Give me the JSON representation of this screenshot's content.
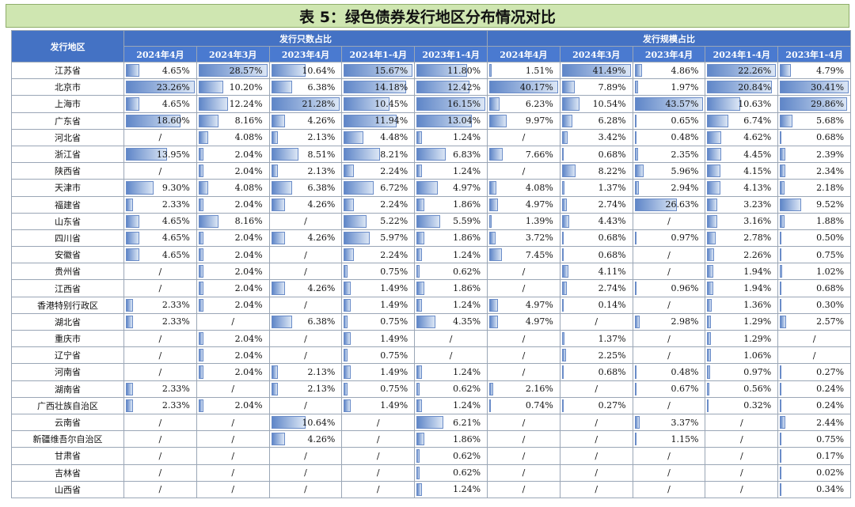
{
  "title": "表 5：绿色债券发行地区分布情况对比",
  "header": {
    "region": "发行地区",
    "groups": [
      "发行只数占比",
      "发行规模占比"
    ],
    "periods": [
      "2024年4月",
      "2024年3月",
      "2023年4月",
      "2024年1-4月",
      "2023年1-4月"
    ]
  },
  "colors": {
    "title_bg": "#cfe6b1",
    "header_bg": "#4472c4",
    "bar_dark": "#5f86c8",
    "bar_light": "#dbe6f5"
  },
  "rows": [
    {
      "region": "江苏省",
      "values": [
        "4.65%",
        "28.57%",
        "10.64%",
        "15.67%",
        "11.80%",
        "1.51%",
        "41.49%",
        "4.86%",
        "22.26%",
        "4.79%"
      ]
    },
    {
      "region": "北京市",
      "values": [
        "23.26%",
        "10.20%",
        "6.38%",
        "14.18%",
        "12.42%",
        "40.17%",
        "7.89%",
        "1.97%",
        "20.84%",
        "30.41%"
      ]
    },
    {
      "region": "上海市",
      "values": [
        "4.65%",
        "12.24%",
        "21.28%",
        "10.45%",
        "16.15%",
        "6.23%",
        "10.54%",
        "43.57%",
        "10.63%",
        "29.86%"
      ]
    },
    {
      "region": "广东省",
      "values": [
        "18.60%",
        "8.16%",
        "4.26%",
        "11.94%",
        "13.04%",
        "9.97%",
        "6.28%",
        "0.65%",
        "6.74%",
        "5.68%"
      ]
    },
    {
      "region": "河北省",
      "values": [
        "/",
        "4.08%",
        "2.13%",
        "4.48%",
        "1.24%",
        "/",
        "3.42%",
        "0.48%",
        "4.62%",
        "0.68%"
      ]
    },
    {
      "region": "浙江省",
      "values": [
        "13.95%",
        "2.04%",
        "8.51%",
        "8.21%",
        "6.83%",
        "7.66%",
        "0.68%",
        "2.35%",
        "4.45%",
        "2.39%"
      ]
    },
    {
      "region": "陕西省",
      "values": [
        "/",
        "2.04%",
        "2.13%",
        "2.24%",
        "1.24%",
        "/",
        "8.22%",
        "5.96%",
        "4.15%",
        "2.34%"
      ]
    },
    {
      "region": "天津市",
      "values": [
        "9.30%",
        "4.08%",
        "6.38%",
        "6.72%",
        "4.97%",
        "4.08%",
        "1.37%",
        "2.94%",
        "4.13%",
        "2.18%"
      ]
    },
    {
      "region": "福建省",
      "values": [
        "2.33%",
        "2.04%",
        "4.26%",
        "2.24%",
        "1.86%",
        "4.97%",
        "2.74%",
        "26.63%",
        "3.23%",
        "9.52%"
      ]
    },
    {
      "region": "山东省",
      "values": [
        "4.65%",
        "8.16%",
        "/",
        "5.22%",
        "5.59%",
        "1.39%",
        "4.43%",
        "/",
        "3.16%",
        "1.88%"
      ]
    },
    {
      "region": "四川省",
      "values": [
        "4.65%",
        "2.04%",
        "4.26%",
        "5.97%",
        "1.86%",
        "3.72%",
        "0.68%",
        "0.97%",
        "2.78%",
        "0.50%"
      ]
    },
    {
      "region": "安徽省",
      "values": [
        "4.65%",
        "2.04%",
        "/",
        "2.24%",
        "1.24%",
        "7.45%",
        "0.68%",
        "/",
        "2.26%",
        "0.75%"
      ]
    },
    {
      "region": "贵州省",
      "values": [
        "/",
        "2.04%",
        "/",
        "0.75%",
        "0.62%",
        "/",
        "4.11%",
        "/",
        "1.94%",
        "1.02%"
      ]
    },
    {
      "region": "江西省",
      "values": [
        "/",
        "2.04%",
        "4.26%",
        "1.49%",
        "1.86%",
        "/",
        "2.74%",
        "0.96%",
        "1.94%",
        "0.68%"
      ]
    },
    {
      "region": "香港特别行政区",
      "values": [
        "2.33%",
        "2.04%",
        "/",
        "1.49%",
        "1.24%",
        "4.97%",
        "0.14%",
        "/",
        "1.36%",
        "0.30%"
      ]
    },
    {
      "region": "湖北省",
      "values": [
        "2.33%",
        "/",
        "6.38%",
        "0.75%",
        "4.35%",
        "4.97%",
        "/",
        "2.98%",
        "1.29%",
        "2.57%"
      ]
    },
    {
      "region": "重庆市",
      "values": [
        "/",
        "2.04%",
        "/",
        "1.49%",
        "/",
        "/",
        "1.37%",
        "/",
        "1.29%",
        "/"
      ]
    },
    {
      "region": "辽宁省",
      "values": [
        "/",
        "2.04%",
        "/",
        "0.75%",
        "/",
        "/",
        "2.25%",
        "/",
        "1.06%",
        "/"
      ]
    },
    {
      "region": "河南省",
      "values": [
        "/",
        "2.04%",
        "2.13%",
        "1.49%",
        "1.24%",
        "/",
        "0.68%",
        "0.48%",
        "0.97%",
        "0.27%"
      ]
    },
    {
      "region": "湖南省",
      "values": [
        "2.33%",
        "/",
        "2.13%",
        "0.75%",
        "0.62%",
        "2.16%",
        "/",
        "0.67%",
        "0.56%",
        "0.24%"
      ]
    },
    {
      "region": "广西壮族自治区",
      "values": [
        "2.33%",
        "2.04%",
        "/",
        "1.49%",
        "1.24%",
        "0.74%",
        "0.27%",
        "/",
        "0.32%",
        "0.24%"
      ]
    },
    {
      "region": "云南省",
      "values": [
        "/",
        "/",
        "10.64%",
        "/",
        "6.21%",
        "/",
        "/",
        "3.37%",
        "/",
        "2.44%"
      ]
    },
    {
      "region": "新疆维吾尔自治区",
      "values": [
        "/",
        "/",
        "4.26%",
        "/",
        "1.86%",
        "/",
        "/",
        "1.15%",
        "/",
        "0.75%"
      ]
    },
    {
      "region": "甘肃省",
      "values": [
        "/",
        "/",
        "/",
        "/",
        "0.62%",
        "/",
        "/",
        "/",
        "/",
        "0.17%"
      ]
    },
    {
      "region": "吉林省",
      "values": [
        "/",
        "/",
        "/",
        "/",
        "0.62%",
        "/",
        "/",
        "/",
        "/",
        "0.02%"
      ]
    },
    {
      "region": "山西省",
      "values": [
        "/",
        "/",
        "/",
        "/",
        "1.24%",
        "/",
        "/",
        "/",
        "/",
        "0.34%"
      ]
    }
  ]
}
